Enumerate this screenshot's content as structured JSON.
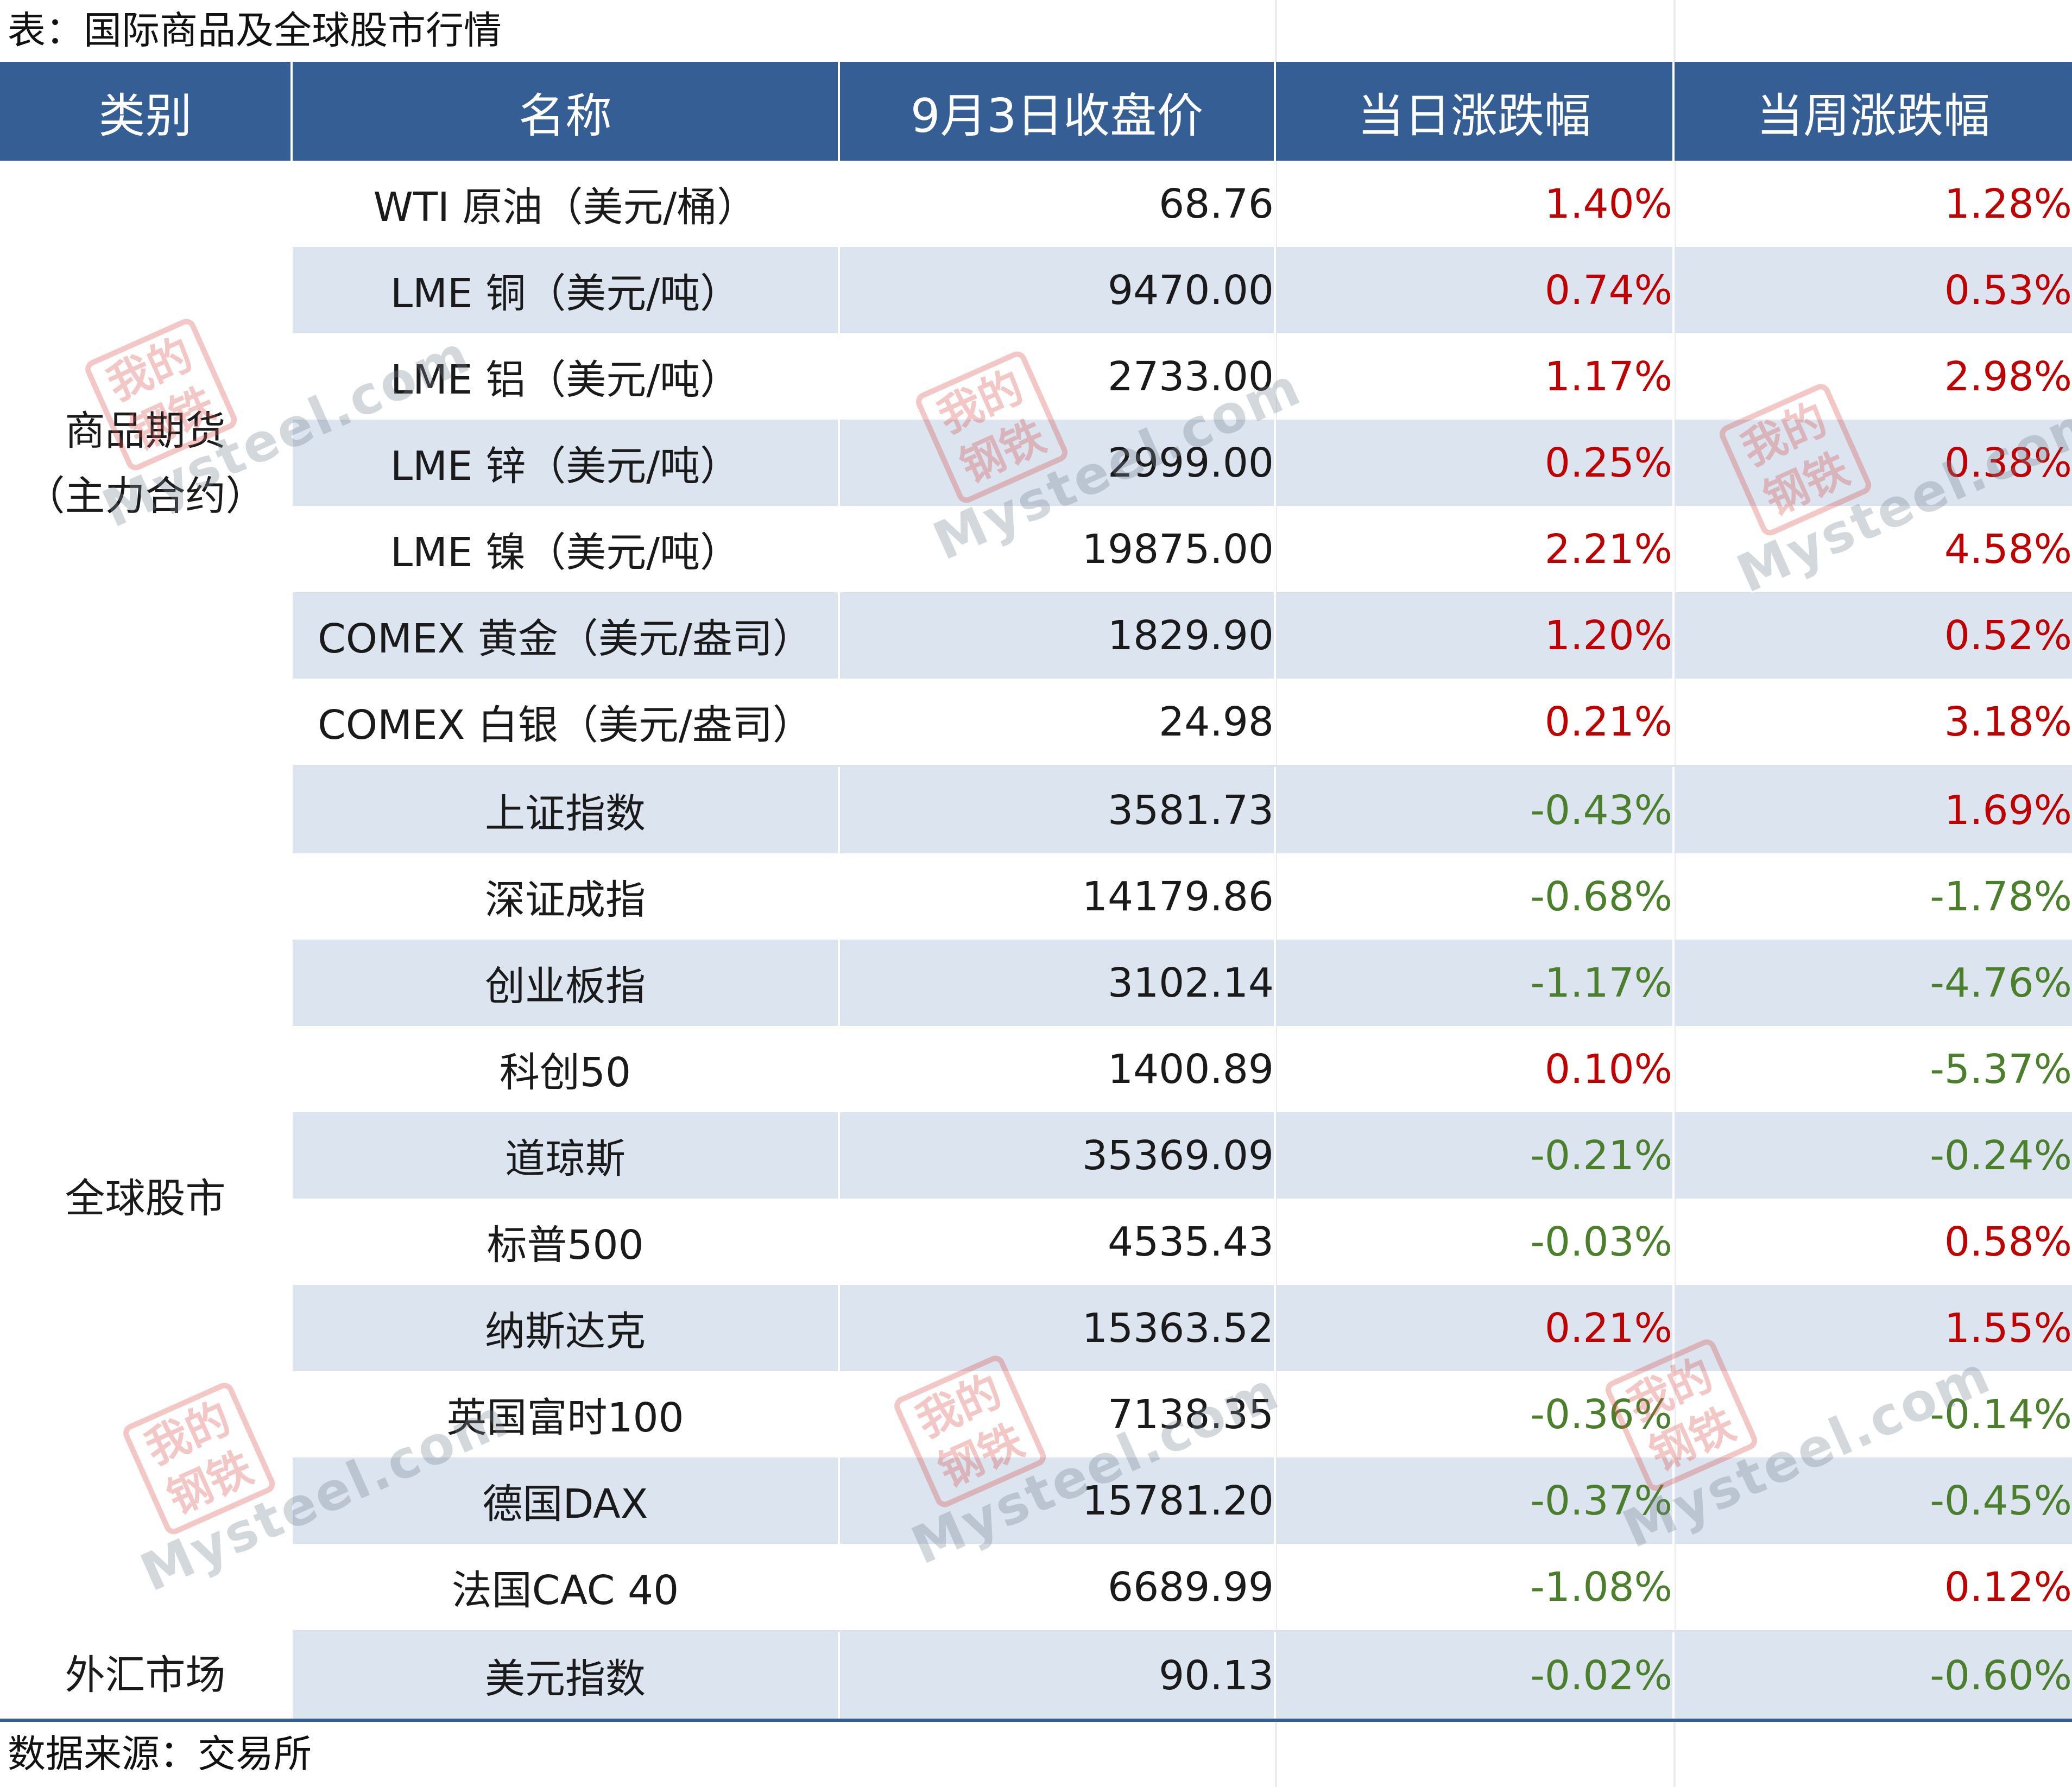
{
  "title": "表：国际商品及全球股市行情",
  "source": "数据来源：交易所",
  "watermark": {
    "seal": "我的钢铁",
    "text": "Mysteel.com"
  },
  "colors": {
    "header_bg": "#355f94",
    "row_alt": "#dbe4ef",
    "up": "#c00000",
    "down": "#4b7f2b"
  },
  "headers": [
    "类别",
    "名称",
    "9月3日收盘价",
    "当日涨跌幅",
    "当周涨跌幅"
  ],
  "groups": [
    {
      "category": "商品期货\n（主力合约）",
      "rows": [
        {
          "name": "WTI 原油（美元/桶）",
          "close": "68.76",
          "day": "1.40%",
          "day_dir": "up",
          "week": "1.28%",
          "week_dir": "up"
        },
        {
          "name": "LME 铜（美元/吨）",
          "close": "9470.00",
          "day": "0.74%",
          "day_dir": "up",
          "week": "0.53%",
          "week_dir": "up"
        },
        {
          "name": "LME 铝（美元/吨）",
          "close": "2733.00",
          "day": "1.17%",
          "day_dir": "up",
          "week": "2.98%",
          "week_dir": "up"
        },
        {
          "name": "LME 锌（美元/吨）",
          "close": "2999.00",
          "day": "0.25%",
          "day_dir": "up",
          "week": "0.38%",
          "week_dir": "up"
        },
        {
          "name": "LME 镍（美元/吨）",
          "close": "19875.00",
          "day": "2.21%",
          "day_dir": "up",
          "week": "4.58%",
          "week_dir": "up"
        },
        {
          "name": "COMEX 黄金（美元/盎司）",
          "close": "1829.90",
          "day": "1.20%",
          "day_dir": "up",
          "week": "0.52%",
          "week_dir": "up"
        },
        {
          "name": "COMEX 白银（美元/盎司）",
          "close": "24.98",
          "day": "0.21%",
          "day_dir": "up",
          "week": "3.18%",
          "week_dir": "up"
        }
      ]
    },
    {
      "category": "全球股市",
      "rows": [
        {
          "name": "上证指数",
          "close": "3581.73",
          "day": "-0.43%",
          "day_dir": "down",
          "week": "1.69%",
          "week_dir": "up"
        },
        {
          "name": "深证成指",
          "close": "14179.86",
          "day": "-0.68%",
          "day_dir": "down",
          "week": "-1.78%",
          "week_dir": "down"
        },
        {
          "name": "创业板指",
          "close": "3102.14",
          "day": "-1.17%",
          "day_dir": "down",
          "week": "-4.76%",
          "week_dir": "down"
        },
        {
          "name": "科创50",
          "close": "1400.89",
          "day": "0.10%",
          "day_dir": "up",
          "week": "-5.37%",
          "week_dir": "down"
        },
        {
          "name": "道琼斯",
          "close": "35369.09",
          "day": "-0.21%",
          "day_dir": "down",
          "week": "-0.24%",
          "week_dir": "down"
        },
        {
          "name": "标普500",
          "close": "4535.43",
          "day": "-0.03%",
          "day_dir": "down",
          "week": "0.58%",
          "week_dir": "up"
        },
        {
          "name": "纳斯达克",
          "close": "15363.52",
          "day": "0.21%",
          "day_dir": "up",
          "week": "1.55%",
          "week_dir": "up"
        },
        {
          "name": "英国富时100",
          "close": "7138.35",
          "day": "-0.36%",
          "day_dir": "down",
          "week": "-0.14%",
          "week_dir": "down"
        },
        {
          "name": "德国DAX",
          "close": "15781.20",
          "day": "-0.37%",
          "day_dir": "down",
          "week": "-0.45%",
          "week_dir": "down"
        },
        {
          "name": "法国CAC 40",
          "close": "6689.99",
          "day": "-1.08%",
          "day_dir": "down",
          "week": "0.12%",
          "week_dir": "up"
        }
      ]
    },
    {
      "category": "外汇市场",
      "rows": [
        {
          "name": "美元指数",
          "close": "90.13",
          "day": "-0.02%",
          "day_dir": "down",
          "week": "-0.60%",
          "week_dir": "down"
        }
      ]
    }
  ]
}
